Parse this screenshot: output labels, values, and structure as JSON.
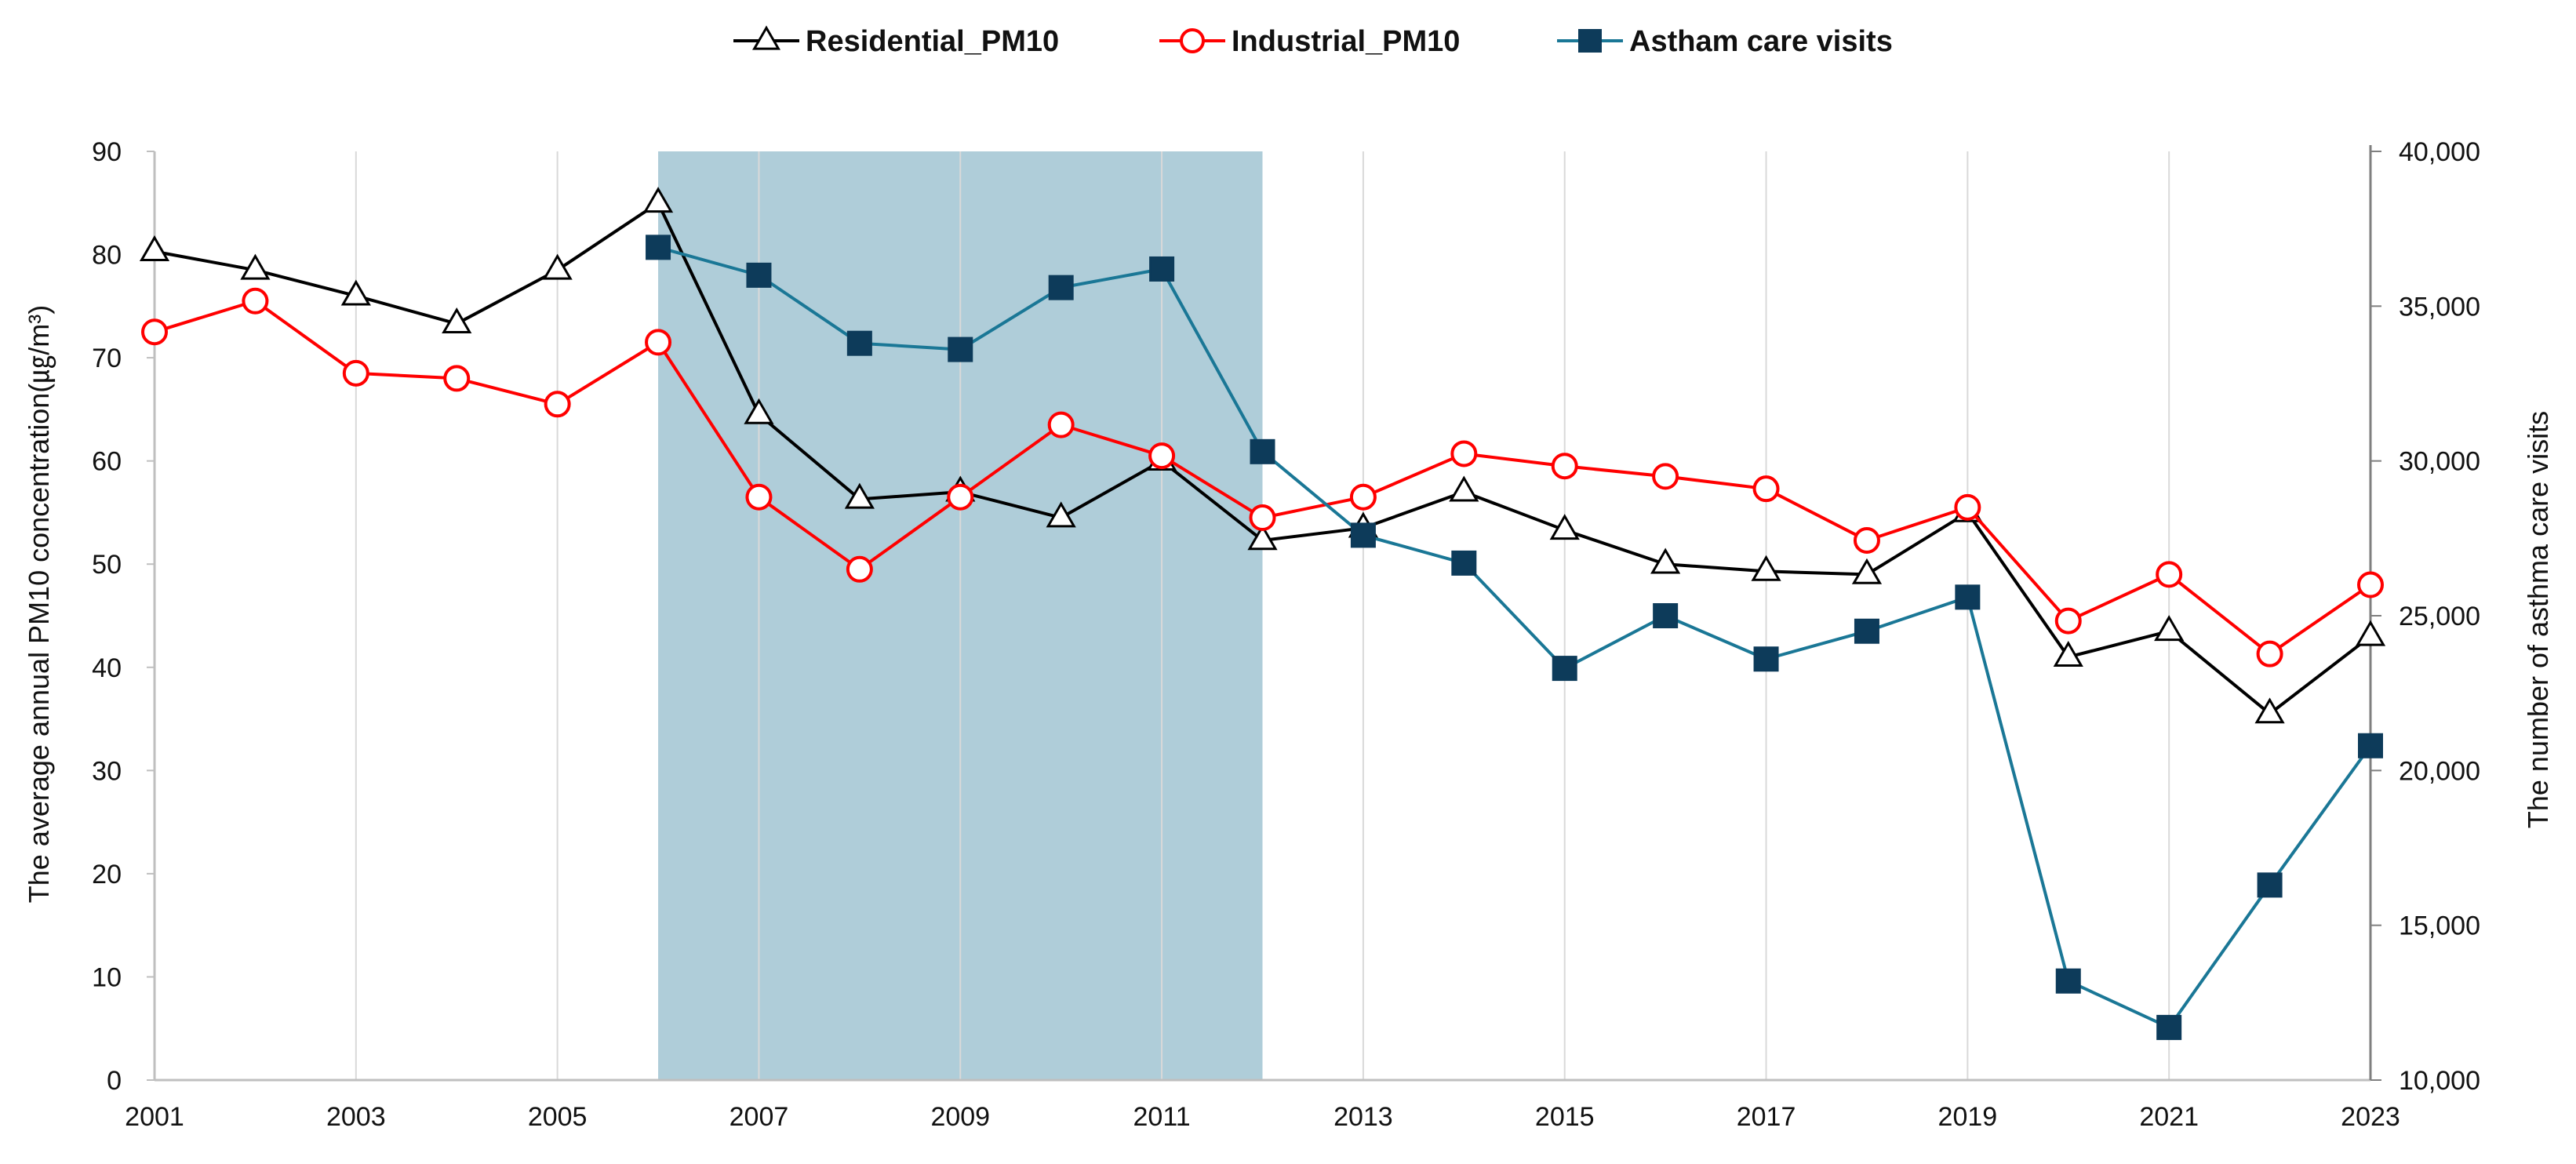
{
  "chart_data": {
    "type": "line",
    "x": [
      2001,
      2002,
      2003,
      2004,
      2005,
      2006,
      2007,
      2008,
      2009,
      2010,
      2011,
      2012,
      2013,
      2014,
      2015,
      2016,
      2017,
      2018,
      2019,
      2020,
      2021,
      2022,
      2023
    ],
    "x_tick_labels": [
      "2001",
      "2003",
      "2005",
      "2007",
      "2009",
      "2011",
      "2013",
      "2015",
      "2017",
      "2019",
      "2021",
      "2023"
    ],
    "xlim": [
      2001,
      2023
    ],
    "series": [
      {
        "name": "Residential_PM10",
        "axis": "left",
        "color": "#000000",
        "marker": "open-triangle",
        "values": [
          80.3,
          78.5,
          76.0,
          73.3,
          78.5,
          85.0,
          64.5,
          56.3,
          57.0,
          54.5,
          60.0,
          52.3,
          53.5,
          57.0,
          53.3,
          50.0,
          49.3,
          49.0,
          55.0,
          41.0,
          43.5,
          35.5,
          43.0
        ]
      },
      {
        "name": "Industrial_PM10",
        "axis": "left",
        "color": "#ff0000",
        "marker": "open-circle",
        "values": [
          72.5,
          75.5,
          68.5,
          68.0,
          65.5,
          71.5,
          56.5,
          49.5,
          56.5,
          63.5,
          60.5,
          54.5,
          56.5,
          60.7,
          59.5,
          58.5,
          57.3,
          52.3,
          55.5,
          44.5,
          49.0,
          41.3,
          48.0
        ]
      },
      {
        "name": "Astham care visits",
        "axis": "right",
        "color": "#1a7796",
        "marker_color": "#0d3b5a",
        "marker": "filled-square",
        "values": [
          null,
          null,
          null,
          null,
          null,
          36900,
          36000,
          33800,
          33600,
          35600,
          36200,
          30300,
          27600,
          26700,
          23300,
          25000,
          23600,
          24500,
          25600,
          13200,
          11700,
          16300,
          20800
        ]
      }
    ],
    "y_left": {
      "label": "The average annual PM10 concentration(㎍/m³)",
      "ylim": [
        0,
        90
      ],
      "tick_labels": [
        "0",
        "10",
        "20",
        "30",
        "40",
        "50",
        "60",
        "70",
        "80",
        "90"
      ]
    },
    "y_right": {
      "label": "The number of  asthma care visits",
      "ylim": [
        10000,
        40000
      ],
      "tick_labels": [
        "10,000",
        "15,000",
        "20,000",
        "25,000",
        "30,000",
        "35,000",
        "40,000"
      ]
    },
    "shaded_region": {
      "x_start": 2006,
      "x_end": 2012,
      "color": "#afcdd9"
    },
    "grid": "vertical",
    "legend_position": "top-center"
  }
}
